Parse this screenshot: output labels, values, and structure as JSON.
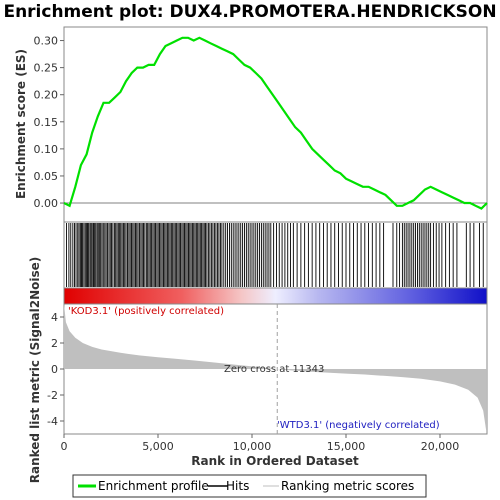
{
  "chart_data": {
    "type": "line",
    "title": "Enrichment plot: DUX4.PROMOTERA.HENDRICKSON",
    "xlabel": "Rank in Ordered Dataset",
    "ylabel_top": "Enrichment score (ES)",
    "ylabel_bottom": "Ranked list metric (Signal2Noise)",
    "xlim": [
      0,
      22500
    ],
    "ylim_es": [
      -0.035,
      0.325
    ],
    "ylim_metric": [
      -5,
      5
    ],
    "x_ticks": [
      0,
      5000,
      10000,
      15000,
      20000
    ],
    "x_tick_labels": [
      "0",
      "5,000",
      "10,000",
      "15,000",
      "20,000"
    ],
    "es_ticks": [
      0.0,
      0.05,
      0.1,
      0.15,
      0.2,
      0.25,
      0.3
    ],
    "es_tick_labels": [
      "0.00",
      "0.05",
      "0.10",
      "0.15",
      "0.20",
      "0.25",
      "0.30"
    ],
    "metric_ticks": [
      4,
      2,
      0,
      -2,
      -4
    ],
    "metric_tick_labels": [
      "4",
      "2",
      "0",
      "-2",
      "-4"
    ],
    "zero_cross": 11343,
    "zero_cross_label": "Zero cross at 11343",
    "pos_label": "'KOD3.1' (positively correlated)",
    "neg_label": "'WTD3.1' (negatively correlated)",
    "colors": {
      "es_line": "#00e000",
      "hit": "#000000",
      "metric_fill": "#bfbfbf",
      "pos_label": "#d00000",
      "neg_label": "#2020c0",
      "zero_line": "#808080"
    },
    "es_profile": {
      "x": [
        0,
        300,
        600,
        900,
        1200,
        1500,
        1800,
        2100,
        2400,
        2700,
        3000,
        3300,
        3600,
        3900,
        4200,
        4500,
        4800,
        5100,
        5400,
        5700,
        6000,
        6300,
        6600,
        6900,
        7200,
        7500,
        7800,
        8100,
        8400,
        8700,
        9000,
        9300,
        9600,
        9900,
        10200,
        10500,
        10800,
        11100,
        11400,
        11700,
        12000,
        12300,
        12600,
        12900,
        13200,
        13500,
        13800,
        14100,
        14400,
        14700,
        15000,
        15300,
        15600,
        15900,
        16200,
        16500,
        16800,
        17100,
        17400,
        17700,
        18000,
        18300,
        18600,
        18900,
        19200,
        19500,
        19800,
        20100,
        20400,
        20700,
        21000,
        21300,
        21600,
        21900,
        22200,
        22500
      ],
      "y": [
        0.0,
        -0.005,
        0.03,
        0.07,
        0.09,
        0.13,
        0.16,
        0.185,
        0.185,
        0.195,
        0.205,
        0.225,
        0.24,
        0.25,
        0.25,
        0.255,
        0.255,
        0.275,
        0.29,
        0.295,
        0.3,
        0.305,
        0.305,
        0.3,
        0.305,
        0.3,
        0.295,
        0.29,
        0.285,
        0.28,
        0.275,
        0.265,
        0.255,
        0.25,
        0.24,
        0.23,
        0.215,
        0.2,
        0.185,
        0.17,
        0.155,
        0.14,
        0.13,
        0.115,
        0.1,
        0.09,
        0.08,
        0.07,
        0.06,
        0.055,
        0.045,
        0.04,
        0.035,
        0.03,
        0.03,
        0.025,
        0.02,
        0.015,
        0.005,
        -0.005,
        -0.005,
        0.0,
        0.005,
        0.015,
        0.025,
        0.03,
        0.025,
        0.02,
        0.015,
        0.01,
        0.005,
        0.0,
        0.0,
        -0.005,
        -0.01,
        0.0
      ]
    },
    "metric_curve": {
      "x": [
        0,
        100,
        300,
        600,
        1000,
        1500,
        2000,
        3000,
        4000,
        5000,
        6000,
        7000,
        8000,
        9000,
        10000,
        11000,
        11343,
        12000,
        13000,
        14000,
        15000,
        16000,
        17000,
        18000,
        19000,
        20000,
        20800,
        21500,
        22000,
        22300,
        22450
      ],
      "y": [
        5.0,
        3.6,
        2.9,
        2.4,
        2.0,
        1.7,
        1.5,
        1.25,
        1.05,
        0.9,
        0.78,
        0.65,
        0.5,
        0.35,
        0.2,
        0.05,
        0.0,
        -0.1,
        -0.2,
        -0.28,
        -0.35,
        -0.42,
        -0.52,
        -0.62,
        -0.75,
        -0.95,
        -1.2,
        -1.6,
        -2.2,
        -3.2,
        -4.7
      ]
    },
    "hits": [
      130,
      260,
      360,
      470,
      560,
      640,
      730,
      800,
      870,
      930,
      990,
      1060,
      1130,
      1190,
      1250,
      1310,
      1380,
      1440,
      1500,
      1570,
      1630,
      1690,
      1760,
      1820,
      1880,
      1950,
      2020,
      2090,
      2170,
      2240,
      2310,
      2390,
      2460,
      2530,
      2600,
      2680,
      2750,
      2820,
      2890,
      2960,
      3020,
      3090,
      3160,
      3230,
      3300,
      3380,
      3450,
      3520,
      3590,
      3660,
      3730,
      3800,
      3870,
      3940,
      4020,
      4090,
      4160,
      4230,
      4300,
      4380,
      4450,
      4520,
      4590,
      4660,
      4730,
      4800,
      4870,
      4940,
      5010,
      5080,
      5150,
      5220,
      5290,
      5360,
      5430,
      5500,
      5570,
      5640,
      5710,
      5780,
      5850,
      5920,
      5990,
      6060,
      6130,
      6200,
      6270,
      6340,
      6410,
      6480,
      6550,
      6620,
      6690,
      6760,
      6830,
      6900,
      6970,
      7040,
      7110,
      7180,
      7250,
      7320,
      7390,
      7460,
      7530,
      7600,
      7680,
      7760,
      7840,
      7920,
      8000,
      8080,
      8160,
      8240,
      8320,
      8400,
      8500,
      8600,
      8700,
      8800,
      8900,
      9000,
      9100,
      9200,
      9300,
      9400,
      9500,
      9600,
      9700,
      9800,
      9900,
      10000,
      10100,
      10200,
      10300,
      10400,
      10500,
      10600,
      10700,
      10800,
      10900,
      11000,
      11150,
      11300,
      11450,
      11600,
      11750,
      11900,
      12050,
      12200,
      12400,
      12600,
      12800,
      13000,
      13200,
      13400,
      13600,
      13800,
      14000,
      14200,
      14400,
      14600,
      14800,
      15000,
      15200,
      15400,
      15600,
      15800,
      16000,
      16200,
      16400,
      16600,
      16800,
      17000,
      17500,
      17700,
      17850,
      18000,
      18100,
      18200,
      18300,
      18400,
      18500,
      18600,
      18700,
      18800,
      18900,
      19000,
      19100,
      19200,
      19300,
      19400,
      19500,
      19650,
      19800,
      19950,
      20100,
      20300,
      20500,
      20700,
      20900,
      21400,
      21600,
      21800,
      22100,
      22300
    ]
  }
}
